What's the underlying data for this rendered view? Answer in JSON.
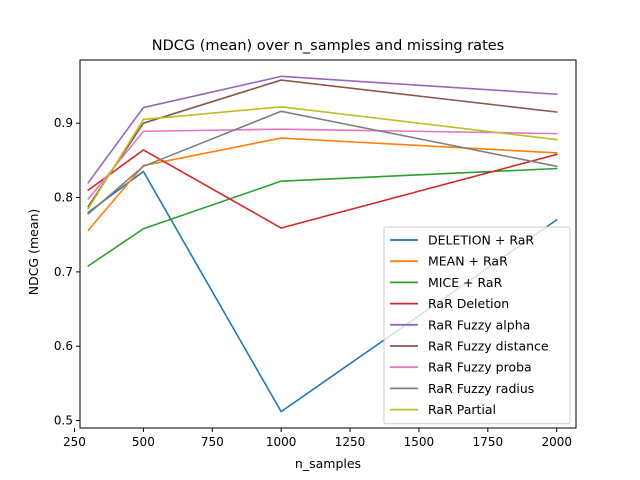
{
  "chart_data": {
    "type": "line",
    "title": "NDCG (mean) over n_samples and missing rates",
    "xlabel": "n_samples",
    "ylabel": "NDCG (mean)",
    "xlim": [
      270,
      2070
    ],
    "ylim": [
      0.49,
      0.985
    ],
    "xticks": [
      250,
      500,
      750,
      1000,
      1250,
      1500,
      1750,
      2000
    ],
    "xtick_labels": [
      "250",
      "500",
      "750",
      "1000",
      "1250",
      "1500",
      "1750",
      "2000"
    ],
    "yticks": [
      0.5,
      0.6,
      0.7,
      0.8,
      0.9
    ],
    "ytick_labels": [
      "0.5",
      "0.6",
      "0.7",
      "0.8",
      "0.9"
    ],
    "legend_position": "lower right",
    "grid": false,
    "x": [
      300,
      500,
      1000,
      2000
    ],
    "series": [
      {
        "name": "DELETION + RaR",
        "color": "#1f77b4",
        "values": [
          0.78,
          0.835,
          0.512,
          0.77
        ]
      },
      {
        "name": "MEAN + RaR",
        "color": "#ff7f0e",
        "values": [
          0.756,
          0.843,
          0.88,
          0.86
        ]
      },
      {
        "name": "MICE + RaR",
        "color": "#2ca02c",
        "values": [
          0.708,
          0.758,
          0.822,
          0.839
        ]
      },
      {
        "name": "RaR Deletion",
        "color": "#d62728",
        "values": [
          0.81,
          0.864,
          0.759,
          0.858
        ]
      },
      {
        "name": "RaR Fuzzy alpha",
        "color": "#9467bd",
        "values": [
          0.82,
          0.921,
          0.963,
          0.939
        ]
      },
      {
        "name": "RaR Fuzzy distance",
        "color": "#8c564b",
        "values": [
          0.788,
          0.9,
          0.958,
          0.915
        ]
      },
      {
        "name": "RaR Fuzzy proba",
        "color": "#e377c2",
        "values": [
          0.798,
          0.889,
          0.892,
          0.886
        ]
      },
      {
        "name": "RaR Fuzzy radius",
        "color": "#7f7f7f",
        "values": [
          0.778,
          0.842,
          0.916,
          0.842
        ]
      },
      {
        "name": "RaR Partial",
        "color": "#bcbd22",
        "values": [
          0.785,
          0.905,
          0.922,
          0.878
        ]
      }
    ]
  }
}
